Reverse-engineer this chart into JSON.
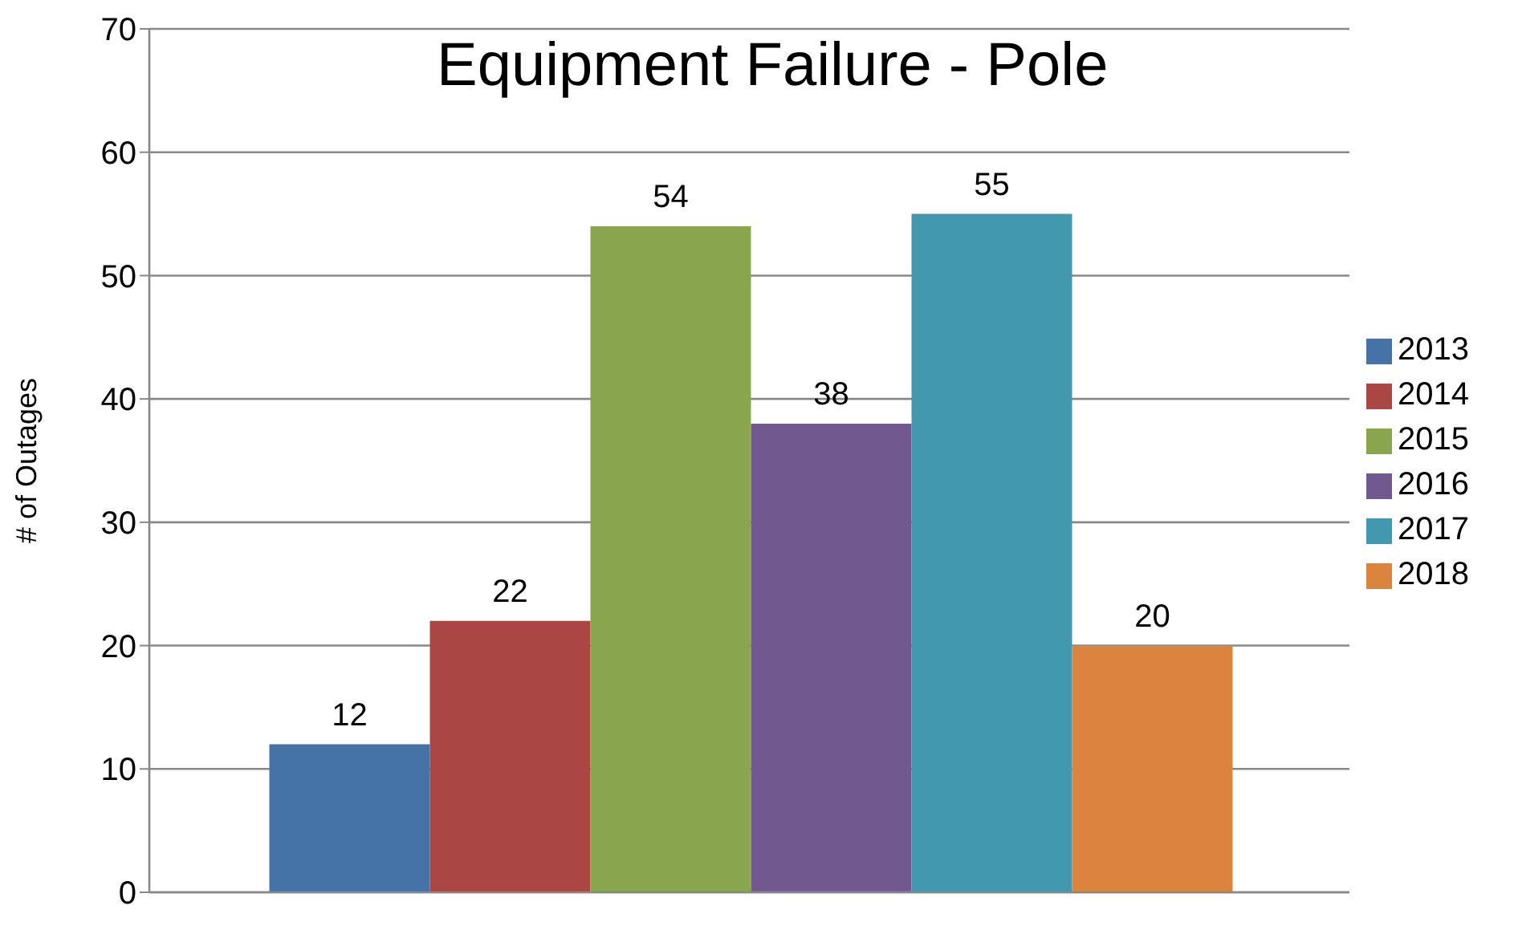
{
  "chart_data": {
    "type": "bar",
    "title": "Equipment Failure - Pole",
    "ylabel": "# of Outages",
    "categories": [
      null
    ],
    "series": [
      {
        "name": "2013",
        "color": "#4572a7",
        "values": [
          12
        ]
      },
      {
        "name": "2014",
        "color": "#aa4643",
        "values": [
          22
        ]
      },
      {
        "name": "2015",
        "color": "#89a54e",
        "values": [
          54
        ]
      },
      {
        "name": "2016",
        "color": "#71588f",
        "values": [
          38
        ]
      },
      {
        "name": "2017",
        "color": "#4198af",
        "values": [
          55
        ]
      },
      {
        "name": "2018",
        "color": "#db843d",
        "values": [
          20
        ]
      }
    ],
    "ylim": [
      0,
      70
    ],
    "yticks": [
      0,
      10,
      20,
      30,
      40,
      50,
      60,
      70
    ],
    "grid": "y",
    "legend": "right",
    "data_labels": true
  }
}
